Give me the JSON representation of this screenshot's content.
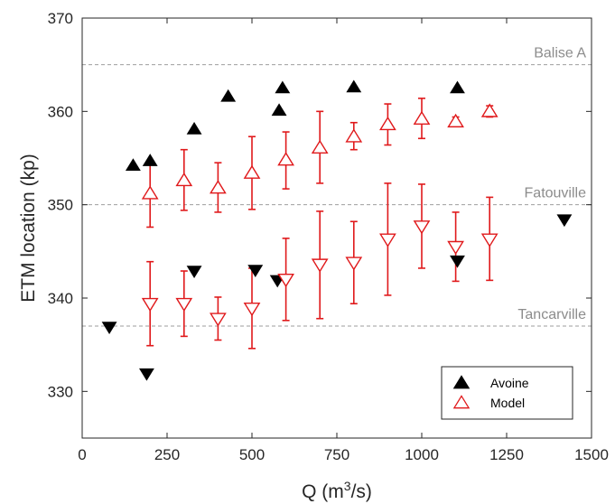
{
  "chart_data": {
    "type": "scatter",
    "xlabel": "Q (m³/s)",
    "xlabel_parts": {
      "base": "Q (m",
      "sup": "3",
      "end": "/s)"
    },
    "ylabel": "ETM location (kp)",
    "xlim": [
      0,
      1500
    ],
    "ylim": [
      325,
      370
    ],
    "xticks": [
      0,
      250,
      500,
      750,
      1000,
      1250,
      1500
    ],
    "yticks": [
      330,
      340,
      350,
      360,
      370
    ],
    "grid": false,
    "legend_position": "bottom-right",
    "reference_lines": [
      {
        "label": "Balise A",
        "y": 365
      },
      {
        "label": "Fatouville",
        "y": 350
      },
      {
        "label": "Tancarville",
        "y": 337
      }
    ],
    "legend": [
      {
        "label": "Avoine",
        "marker": "triangle-up-filled",
        "color": "#000000"
      },
      {
        "label": "Model",
        "marker": "triangle-up-open",
        "color": "#e0191b"
      }
    ],
    "series": [
      {
        "name": "Avoine",
        "color": "#000000",
        "flood": [
          {
            "x": 150,
            "y": 354.2
          },
          {
            "x": 200,
            "y": 354.7
          },
          {
            "x": 330,
            "y": 358.1
          },
          {
            "x": 430,
            "y": 361.6
          },
          {
            "x": 580,
            "y": 360.1
          },
          {
            "x": 590,
            "y": 362.5
          },
          {
            "x": 800,
            "y": 362.6
          },
          {
            "x": 1105,
            "y": 362.5
          }
        ],
        "ebb": [
          {
            "x": 80,
            "y": 336.9
          },
          {
            "x": 190,
            "y": 331.9
          },
          {
            "x": 330,
            "y": 342.9
          },
          {
            "x": 510,
            "y": 343.0
          },
          {
            "x": 575,
            "y": 341.9
          },
          {
            "x": 1105,
            "y": 344.0
          },
          {
            "x": 1420,
            "y": 348.4
          }
        ]
      },
      {
        "name": "Model",
        "color": "#e0191b",
        "flood": [
          {
            "x": 200,
            "y": 351.2,
            "low": 347.6,
            "high": 354.7
          },
          {
            "x": 300,
            "y": 352.6,
            "low": 349.4,
            "high": 355.9
          },
          {
            "x": 400,
            "y": 351.8,
            "low": 349.2,
            "high": 354.5
          },
          {
            "x": 500,
            "y": 353.4,
            "low": 349.5,
            "high": 357.3
          },
          {
            "x": 600,
            "y": 354.8,
            "low": 351.7,
            "high": 357.8
          },
          {
            "x": 700,
            "y": 356.1,
            "low": 352.3,
            "high": 360.0
          },
          {
            "x": 800,
            "y": 357.3,
            "low": 355.9,
            "high": 358.8
          },
          {
            "x": 900,
            "y": 358.6,
            "low": 356.4,
            "high": 360.8
          },
          {
            "x": 1000,
            "y": 359.2,
            "low": 357.1,
            "high": 361.4
          },
          {
            "x": 1100,
            "y": 358.9,
            "low": 358.4,
            "high": 359.4
          },
          {
            "x": 1200,
            "y": 360.0,
            "low": 359.4,
            "high": 360.6
          }
        ],
        "ebb": [
          {
            "x": 200,
            "y": 339.4,
            "low": 334.9,
            "high": 343.9
          },
          {
            "x": 300,
            "y": 339.4,
            "low": 335.9,
            "high": 342.9
          },
          {
            "x": 400,
            "y": 337.8,
            "low": 335.5,
            "high": 340.1
          },
          {
            "x": 500,
            "y": 338.9,
            "low": 334.6,
            "high": 343.2
          },
          {
            "x": 600,
            "y": 342.0,
            "low": 337.6,
            "high": 346.4
          },
          {
            "x": 700,
            "y": 343.6,
            "low": 337.8,
            "high": 349.3
          },
          {
            "x": 800,
            "y": 343.8,
            "low": 339.4,
            "high": 348.2
          },
          {
            "x": 900,
            "y": 346.3,
            "low": 340.3,
            "high": 352.3
          },
          {
            "x": 1000,
            "y": 347.7,
            "low": 343.2,
            "high": 352.2
          },
          {
            "x": 1100,
            "y": 345.5,
            "low": 341.8,
            "high": 349.2
          },
          {
            "x": 1200,
            "y": 346.3,
            "low": 341.9,
            "high": 350.8
          }
        ]
      }
    ]
  }
}
